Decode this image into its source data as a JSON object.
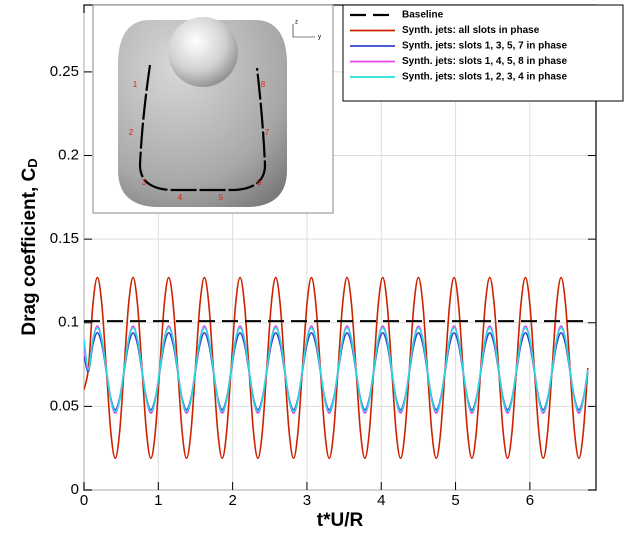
{
  "chart_data": {
    "type": "line",
    "x_label": "t*U/R",
    "y_label": "Drag coefficient, C",
    "y_label_sub": "D",
    "xlim": [
      0,
      6.89
    ],
    "ylim": [
      0,
      0.29
    ],
    "xticks": [
      0,
      1,
      2,
      3,
      4,
      5,
      6
    ],
    "yticks": [
      0,
      0.05,
      0.1,
      0.15,
      0.2,
      0.25
    ],
    "grid": true,
    "legend": "upper right",
    "x": [
      0,
      0.06,
      0.12,
      0.18,
      0.24,
      0.3,
      0.36,
      0.42,
      0.48,
      0.54,
      0.6,
      0.66,
      0.72,
      0.78,
      0.84,
      0.9,
      0.96,
      1.02,
      1.08,
      1.14,
      1.2,
      1.26,
      1.32,
      1.38,
      1.44,
      1.5,
      1.56,
      1.62,
      1.68,
      1.74,
      1.8,
      1.86,
      1.92,
      1.98,
      2.04,
      2.1,
      2.16,
      2.22,
      2.28,
      2.34,
      2.4,
      2.46,
      2.52,
      2.58,
      2.64,
      2.7,
      2.76,
      2.82,
      2.88,
      2.94,
      3,
      3.06,
      3.12,
      3.18,
      3.24,
      3.3,
      3.36,
      3.42,
      3.48,
      3.54,
      3.6,
      3.66,
      3.72,
      3.78,
      3.84,
      3.9,
      3.96,
      4.02,
      4.08,
      4.14,
      4.2,
      4.26,
      4.32,
      4.38,
      4.44,
      4.5,
      4.56,
      4.62,
      4.68,
      4.74,
      4.8,
      4.86,
      4.92,
      4.98,
      5.04,
      5.1,
      5.16,
      5.22,
      5.28,
      5.34,
      5.4,
      5.46,
      5.52,
      5.58,
      5.64,
      5.7,
      5.76,
      5.82,
      5.88,
      5.94,
      6,
      6.06,
      6.12,
      6.18,
      6.24,
      6.3,
      6.36,
      6.42,
      6.48,
      6.54,
      6.6,
      6.66,
      6.72,
      6.78
    ],
    "series": [
      {
        "name": "Baseline",
        "color": "#000000",
        "dash": true,
        "values": [
          0.101,
          0.101,
          0.101,
          0.101,
          0.101,
          0.101,
          0.101,
          0.101,
          0.101,
          0.101,
          0.101,
          0.101,
          0.101,
          0.101,
          0.101,
          0.101,
          0.101,
          0.101,
          0.101,
          0.101,
          0.101,
          0.101,
          0.101,
          0.101,
          0.101,
          0.101,
          0.101,
          0.101,
          0.101,
          0.101,
          0.101,
          0.101,
          0.101,
          0.101,
          0.101,
          0.101,
          0.101,
          0.101,
          0.101,
          0.101,
          0.101,
          0.101,
          0.101,
          0.101,
          0.101,
          0.101,
          0.101,
          0.101,
          0.101,
          0.101,
          0.101,
          0.101,
          0.101,
          0.101,
          0.101,
          0.101,
          0.101,
          0.101,
          0.101,
          0.101,
          0.101,
          0.101,
          0.101,
          0.101,
          0.101,
          0.101,
          0.101,
          0.101,
          0.101,
          0.101,
          0.101,
          0.101,
          0.101,
          0.101,
          0.101,
          0.101,
          0.101,
          0.101,
          0.101,
          0.101,
          0.101,
          0.101,
          0.101,
          0.101,
          0.101,
          0.101,
          0.101,
          0.101,
          0.101,
          0.101,
          0.101,
          0.101,
          0.101,
          0.101,
          0.101,
          0.101,
          0.101,
          0.101,
          0.101,
          0.101,
          0.101,
          0.101,
          0.101,
          0.101,
          0.101,
          0.101,
          0.101,
          0.101,
          0.101,
          0.101,
          0.101,
          0.101,
          0.101,
          0.101
        ]
      },
      {
        "name": "Synth. jets: all slots in phase",
        "color": "#cc2200",
        "values": [
          0.06,
          0.073,
          0.111,
          0.127,
          0.111,
          0.073,
          0.035,
          0.019,
          0.035,
          0.073,
          0.111,
          0.127,
          0.111,
          0.073,
          0.035,
          0.019,
          0.035,
          0.073,
          0.111,
          0.127,
          0.111,
          0.073,
          0.035,
          0.019,
          0.035,
          0.073,
          0.111,
          0.127,
          0.111,
          0.073,
          0.035,
          0.019,
          0.035,
          0.073,
          0.111,
          0.127,
          0.111,
          0.073,
          0.035,
          0.019,
          0.035,
          0.073,
          0.111,
          0.127,
          0.111,
          0.073,
          0.035,
          0.019,
          0.035,
          0.073,
          0.111,
          0.127,
          0.111,
          0.073,
          0.035,
          0.019,
          0.035,
          0.073,
          0.111,
          0.127,
          0.111,
          0.073,
          0.035,
          0.019,
          0.035,
          0.073,
          0.111,
          0.127,
          0.111,
          0.073,
          0.035,
          0.019,
          0.035,
          0.073,
          0.111,
          0.127,
          0.111,
          0.073,
          0.035,
          0.019,
          0.035,
          0.073,
          0.111,
          0.127,
          0.111,
          0.073,
          0.035,
          0.019,
          0.035,
          0.073,
          0.111,
          0.127,
          0.111,
          0.073,
          0.035,
          0.019,
          0.035,
          0.073,
          0.111,
          0.127,
          0.111,
          0.073,
          0.035,
          0.019,
          0.035,
          0.073,
          0.111,
          0.127,
          0.111,
          0.073,
          0.035,
          0.019,
          0.035,
          0.073
        ]
      },
      {
        "name": "Synth. jets: slots 1, 3, 5, 7 in phase",
        "color": "#3344cc",
        "values": [
          0.08,
          0.071,
          0.087,
          0.094,
          0.087,
          0.071,
          0.055,
          0.048,
          0.055,
          0.071,
          0.087,
          0.094,
          0.087,
          0.071,
          0.055,
          0.048,
          0.055,
          0.071,
          0.087,
          0.094,
          0.087,
          0.071,
          0.055,
          0.048,
          0.055,
          0.071,
          0.087,
          0.094,
          0.087,
          0.071,
          0.055,
          0.048,
          0.055,
          0.071,
          0.087,
          0.094,
          0.087,
          0.071,
          0.055,
          0.048,
          0.055,
          0.071,
          0.087,
          0.094,
          0.087,
          0.071,
          0.055,
          0.048,
          0.055,
          0.071,
          0.087,
          0.094,
          0.087,
          0.071,
          0.055,
          0.048,
          0.055,
          0.071,
          0.087,
          0.094,
          0.087,
          0.071,
          0.055,
          0.048,
          0.055,
          0.071,
          0.087,
          0.094,
          0.087,
          0.071,
          0.055,
          0.048,
          0.055,
          0.071,
          0.087,
          0.094,
          0.087,
          0.071,
          0.055,
          0.048,
          0.055,
          0.071,
          0.087,
          0.094,
          0.087,
          0.071,
          0.055,
          0.048,
          0.055,
          0.071,
          0.087,
          0.094,
          0.087,
          0.071,
          0.055,
          0.048,
          0.055,
          0.071,
          0.087,
          0.094,
          0.087,
          0.071,
          0.055,
          0.048,
          0.055,
          0.071,
          0.087,
          0.094,
          0.087,
          0.071,
          0.055,
          0.048,
          0.055,
          0.071
        ]
      },
      {
        "name": "Synth. jets: slots 1, 4, 5, 8 in phase",
        "color": "#ee44ee",
        "values": [
          0.085,
          0.072,
          0.09,
          0.098,
          0.09,
          0.072,
          0.054,
          0.046,
          0.054,
          0.072,
          0.09,
          0.098,
          0.09,
          0.072,
          0.054,
          0.046,
          0.054,
          0.072,
          0.09,
          0.098,
          0.09,
          0.072,
          0.054,
          0.046,
          0.054,
          0.072,
          0.09,
          0.098,
          0.09,
          0.072,
          0.054,
          0.046,
          0.054,
          0.072,
          0.09,
          0.098,
          0.09,
          0.072,
          0.054,
          0.046,
          0.054,
          0.072,
          0.09,
          0.098,
          0.09,
          0.072,
          0.054,
          0.046,
          0.054,
          0.072,
          0.09,
          0.098,
          0.09,
          0.072,
          0.054,
          0.046,
          0.054,
          0.072,
          0.09,
          0.098,
          0.09,
          0.072,
          0.054,
          0.046,
          0.054,
          0.072,
          0.09,
          0.098,
          0.09,
          0.072,
          0.054,
          0.046,
          0.054,
          0.072,
          0.09,
          0.098,
          0.09,
          0.072,
          0.054,
          0.046,
          0.054,
          0.072,
          0.09,
          0.098,
          0.09,
          0.072,
          0.054,
          0.046,
          0.054,
          0.072,
          0.09,
          0.098,
          0.09,
          0.072,
          0.054,
          0.046,
          0.054,
          0.072,
          0.09,
          0.098,
          0.09,
          0.072,
          0.054,
          0.046,
          0.054,
          0.072,
          0.09,
          0.098,
          0.09,
          0.072,
          0.054,
          0.046,
          0.054,
          0.072
        ]
      },
      {
        "name": "Synth. jets: slots 1, 2, 3, 4 in phase",
        "color": "#22dddd",
        "values": [
          0.09,
          0.072,
          0.09,
          0.097,
          0.09,
          0.072,
          0.054,
          0.047,
          0.054,
          0.072,
          0.09,
          0.097,
          0.09,
          0.072,
          0.054,
          0.047,
          0.054,
          0.072,
          0.09,
          0.097,
          0.09,
          0.072,
          0.054,
          0.047,
          0.054,
          0.072,
          0.09,
          0.097,
          0.09,
          0.072,
          0.054,
          0.047,
          0.054,
          0.072,
          0.09,
          0.097,
          0.09,
          0.072,
          0.054,
          0.047,
          0.054,
          0.072,
          0.09,
          0.097,
          0.09,
          0.072,
          0.054,
          0.047,
          0.054,
          0.072,
          0.09,
          0.097,
          0.09,
          0.072,
          0.054,
          0.047,
          0.054,
          0.072,
          0.09,
          0.097,
          0.09,
          0.072,
          0.054,
          0.047,
          0.054,
          0.072,
          0.09,
          0.097,
          0.09,
          0.072,
          0.054,
          0.047,
          0.054,
          0.072,
          0.09,
          0.097,
          0.09,
          0.072,
          0.054,
          0.047,
          0.054,
          0.072,
          0.09,
          0.097,
          0.09,
          0.072,
          0.054,
          0.047,
          0.054,
          0.072,
          0.09,
          0.097,
          0.09,
          0.072,
          0.054,
          0.047,
          0.054,
          0.072,
          0.09,
          0.097,
          0.09,
          0.072,
          0.054,
          0.047,
          0.054,
          0.072,
          0.09,
          0.097,
          0.09,
          0.072,
          0.054,
          0.047,
          0.054,
          0.072
        ]
      }
    ]
  },
  "inset": {
    "slot_labels": [
      "1",
      "2",
      "3",
      "4",
      "5",
      "6",
      "7",
      "8"
    ],
    "axis_labels": [
      "z",
      "y"
    ]
  }
}
